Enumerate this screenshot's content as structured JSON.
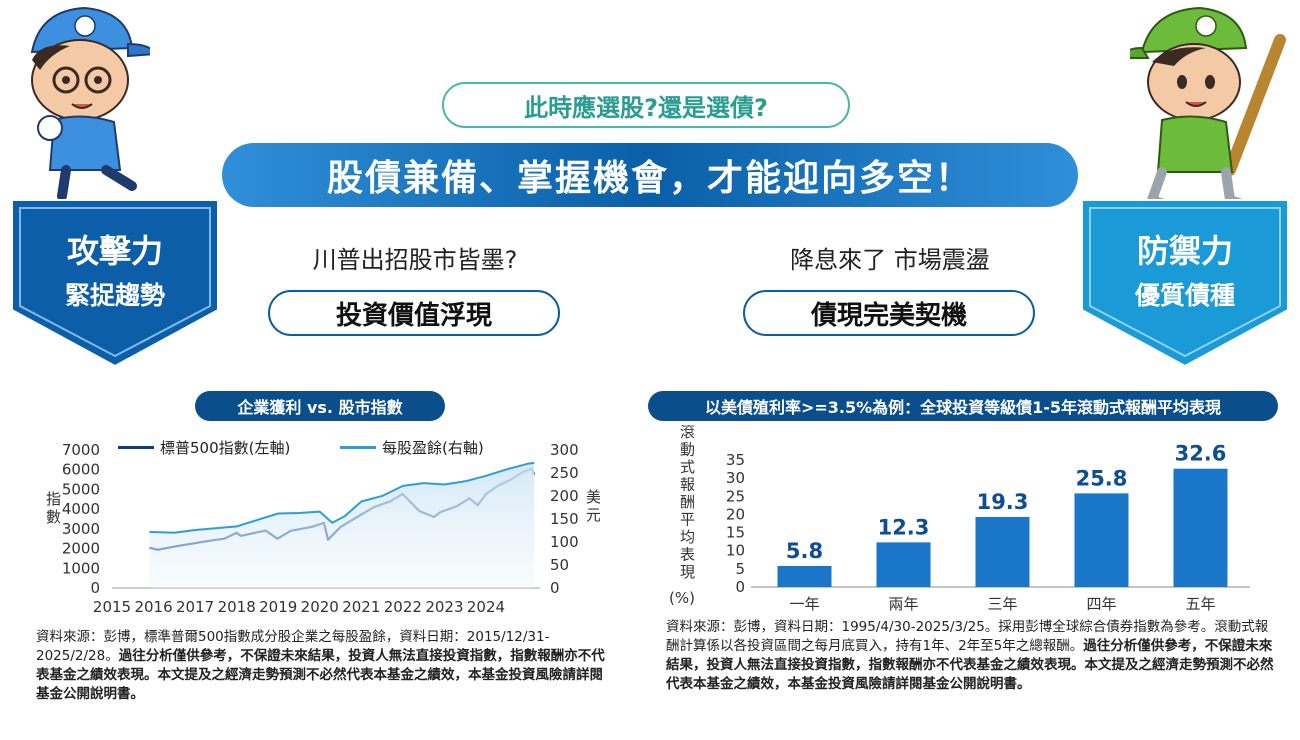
{
  "header": {
    "question": "此時應選股?還是選債?",
    "banner": "股債兼備、掌握機會，才能迎向多空！"
  },
  "left_panel": {
    "shield_title": "攻擊力",
    "shield_subtitle": "緊捉趨勢",
    "question": "川普出招股市皆墨?",
    "pill": "投資價值浮現",
    "note_plain": "資料來源：彭博，標準普爾500指數成分股企業之每股盈餘，資料日期：2015/12/31-2025/2/28。",
    "note_bold": "過往分析僅供參考，不保證未來結果，投資人無法直接投資指數，指數報酬亦不代表基金之績效表現。本文提及之經濟走勢預測不必然代表本基金之績效，本基金投資風險請詳閱基金公開說明書。"
  },
  "right_panel": {
    "shield_title": "防禦力",
    "shield_subtitle": "優質債種",
    "question": "降息來了 市場震盪",
    "pill": "債現完美契機",
    "note_plain": "資料來源：彭博，資料日期：1995/4/30-2025/3/25。採用彭博全球綜合債券指數為參考。滾動式報酬計算係以各投資區間之每月底買入，持有1年、2年至5年之總報酬。",
    "note_bold": "過往分析僅供參考，不保證未來結果，投資人無法直接投資指數，指數報酬亦不代表基金之績效表現。本文提及之經濟走勢預測不必然代表本基金之績效，本基金投資風險請詳閱基金公開說明書。"
  },
  "chart_data": [
    {
      "type": "line",
      "title": "企業獲利 vs. 股市指數",
      "ylabel": "指數",
      "y2label": "美元",
      "x_ticks": [
        "2015",
        "2016",
        "2017",
        "2018",
        "2019",
        "2020",
        "2021",
        "2022",
        "2023",
        "2024"
      ],
      "y_ticks": [
        "0",
        "1000",
        "2000",
        "3000",
        "4000",
        "5000",
        "6000",
        "7000"
      ],
      "y2_ticks": [
        "0",
        "50",
        "100",
        "150",
        "200",
        "250",
        "300"
      ],
      "ylim": [
        0,
        7000
      ],
      "y2lim": [
        0,
        300
      ],
      "legend_position": "top-left",
      "series": [
        {
          "name": "標普500指數(左軸)",
          "axis": "left",
          "color": "#0d3f86",
          "x": [
            2015.9,
            2016.1,
            2016.5,
            2016.9,
            2017.3,
            2017.7,
            2018.0,
            2018.1,
            2018.7,
            2018.98,
            2019.3,
            2019.8,
            2020.1,
            2020.2,
            2020.5,
            2020.9,
            2021.3,
            2021.7,
            2021.99,
            2022.4,
            2022.75,
            2022.9,
            2023.3,
            2023.6,
            2023.8,
            2024.0,
            2024.3,
            2024.6,
            2024.9,
            2025.1,
            2025.16
          ],
          "y": [
            2044,
            1940,
            2100,
            2240,
            2380,
            2500,
            2800,
            2650,
            2910,
            2500,
            2900,
            3100,
            3300,
            2450,
            3100,
            3600,
            4100,
            4400,
            4770,
            3900,
            3600,
            3850,
            4150,
            4550,
            4200,
            4770,
            5200,
            5500,
            5900,
            6050,
            5750
          ]
        },
        {
          "name": "每股盈餘(右軸)",
          "axis": "right",
          "color": "#2e9cd8",
          "x": [
            2015.9,
            2016.5,
            2017.0,
            2017.5,
            2018.0,
            2018.5,
            2019.0,
            2019.5,
            2020.0,
            2020.3,
            2020.6,
            2021.0,
            2021.5,
            2022.0,
            2022.5,
            2023.0,
            2023.5,
            2024.0,
            2024.5,
            2025.0,
            2025.16
          ],
          "y": [
            122,
            120,
            126,
            130,
            134,
            148,
            162,
            163,
            166,
            142,
            156,
            188,
            200,
            222,
            228,
            225,
            232,
            244,
            258,
            270,
            272
          ]
        }
      ]
    },
    {
      "type": "bar",
      "title": "以美債殖利率>=3.5%為例：全球投資等級債1-5年滾動式報酬平均表現",
      "ylabel": "滾動式報酬平均表現",
      "yunit": "(%)",
      "categories": [
        "一年",
        "兩年",
        "三年",
        "四年",
        "五年"
      ],
      "values": [
        5.8,
        12.3,
        19.3,
        25.8,
        32.6
      ],
      "y_ticks": [
        "0",
        "5",
        "10",
        "15",
        "20",
        "25",
        "30",
        "35"
      ],
      "ylim": [
        0,
        35
      ],
      "color": "#1976c8"
    }
  ]
}
